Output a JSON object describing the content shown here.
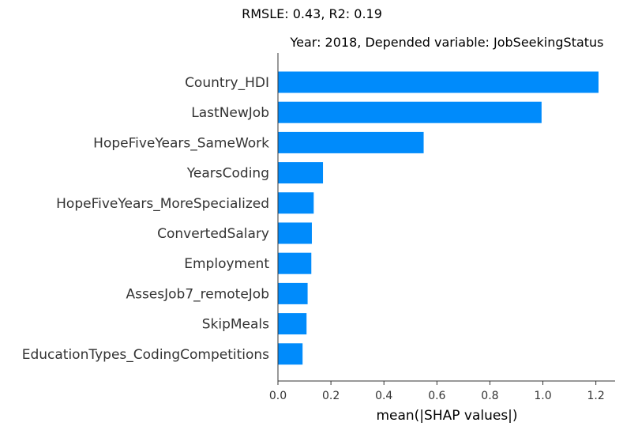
{
  "suptitle": "RMSLE: 0.43, R2: 0.19",
  "chart_data": {
    "type": "bar",
    "orientation": "horizontal",
    "title": "Year: 2018, Depended variable: JobSeekingStatus",
    "xlabel": "mean(|SHAP values|)",
    "ylabel": "",
    "xlim": [
      0,
      1.27
    ],
    "xticks": [
      "0.0",
      "0.2",
      "0.4",
      "0.6",
      "0.8",
      "1.0",
      "1.2"
    ],
    "categories": [
      "Country_HDI",
      "LastNewJob",
      "HopeFiveYears_SameWork",
      "YearsCoding",
      "HopeFiveYears_MoreSpecialized",
      "ConvertedSalary",
      "Employment",
      "AssesJob7_remoteJob",
      "SkipMeals",
      "EducationTypes_CodingCompetitions"
    ],
    "values": [
      1.21,
      0.995,
      0.55,
      0.17,
      0.135,
      0.128,
      0.126,
      0.112,
      0.108,
      0.093
    ],
    "bar_color": "#008bfb",
    "grid": false
  }
}
